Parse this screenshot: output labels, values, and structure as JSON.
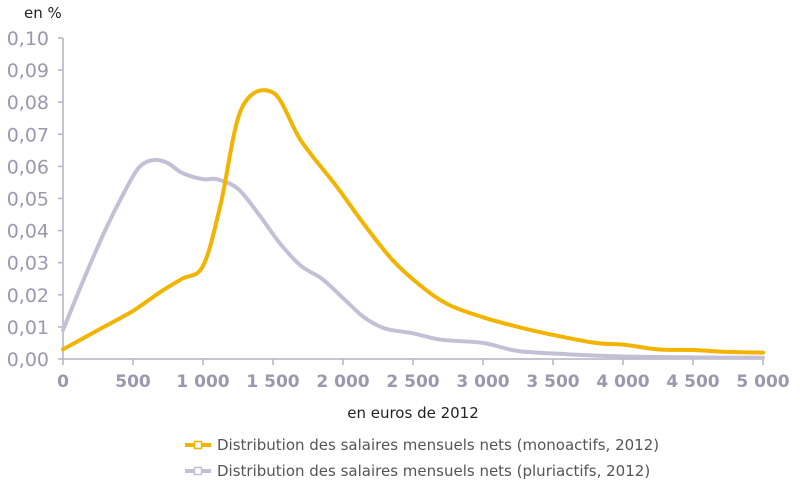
{
  "chart_data": {
    "type": "line",
    "ylabel": "en %",
    "xlabel": "en euros de 2012",
    "xlim": [
      0,
      5000
    ],
    "ylim": [
      0,
      0.1
    ],
    "x_ticks": [
      0,
      500,
      1000,
      1500,
      2000,
      2500,
      3000,
      3500,
      4000,
      4500,
      5000
    ],
    "x_tick_labels": [
      "0",
      "500",
      "1 000",
      "1 500",
      "2 000",
      "2 500",
      "3 000",
      "3 500",
      "4 000",
      "4 500",
      "5 000"
    ],
    "y_ticks": [
      0,
      0.01,
      0.02,
      0.03,
      0.04,
      0.05,
      0.06,
      0.07,
      0.08,
      0.09,
      0.1
    ],
    "y_tick_labels": [
      "0,00",
      "0,01",
      "0,02",
      "0,03",
      "0,04",
      "0,05",
      "0,06",
      "0,07",
      "0,08",
      "0,09",
      "0,10"
    ],
    "grid": false,
    "legend_position": "bottom",
    "series": [
      {
        "name": "Distribution des salaires mensuels nets (monoactifs, 2012)",
        "color": "#f2b400",
        "points": [
          [
            0,
            0.003
          ],
          [
            250,
            0.009
          ],
          [
            500,
            0.015
          ],
          [
            700,
            0.021
          ],
          [
            850,
            0.025
          ],
          [
            1000,
            0.029
          ],
          [
            1125,
            0.048
          ],
          [
            1275,
            0.078
          ],
          [
            1500,
            0.083
          ],
          [
            1700,
            0.068
          ],
          [
            1950,
            0.054
          ],
          [
            2150,
            0.042
          ],
          [
            2350,
            0.031
          ],
          [
            2550,
            0.023
          ],
          [
            2750,
            0.017
          ],
          [
            3000,
            0.013
          ],
          [
            3250,
            0.01
          ],
          [
            3500,
            0.0075
          ],
          [
            3800,
            0.005
          ],
          [
            4000,
            0.0045
          ],
          [
            4250,
            0.003
          ],
          [
            4500,
            0.0028
          ],
          [
            4750,
            0.0022
          ],
          [
            5000,
            0.002
          ]
        ]
      },
      {
        "name": "Distribution des salaires mensuels nets (pluriactifs, 2012)",
        "color": "#c3c0d6",
        "points": [
          [
            0,
            0.009
          ],
          [
            150,
            0.025
          ],
          [
            300,
            0.04
          ],
          [
            450,
            0.053
          ],
          [
            550,
            0.06
          ],
          [
            650,
            0.062
          ],
          [
            750,
            0.061
          ],
          [
            850,
            0.058
          ],
          [
            1000,
            0.056
          ],
          [
            1100,
            0.056
          ],
          [
            1250,
            0.053
          ],
          [
            1400,
            0.045
          ],
          [
            1550,
            0.036
          ],
          [
            1700,
            0.029
          ],
          [
            1850,
            0.025
          ],
          [
            2000,
            0.019
          ],
          [
            2150,
            0.013
          ],
          [
            2300,
            0.0095
          ],
          [
            2500,
            0.008
          ],
          [
            2700,
            0.006
          ],
          [
            3000,
            0.005
          ],
          [
            3250,
            0.0025
          ],
          [
            3600,
            0.0015
          ],
          [
            4000,
            0.0008
          ],
          [
            4500,
            0.0005
          ],
          [
            5000,
            0.0004
          ]
        ]
      }
    ]
  }
}
